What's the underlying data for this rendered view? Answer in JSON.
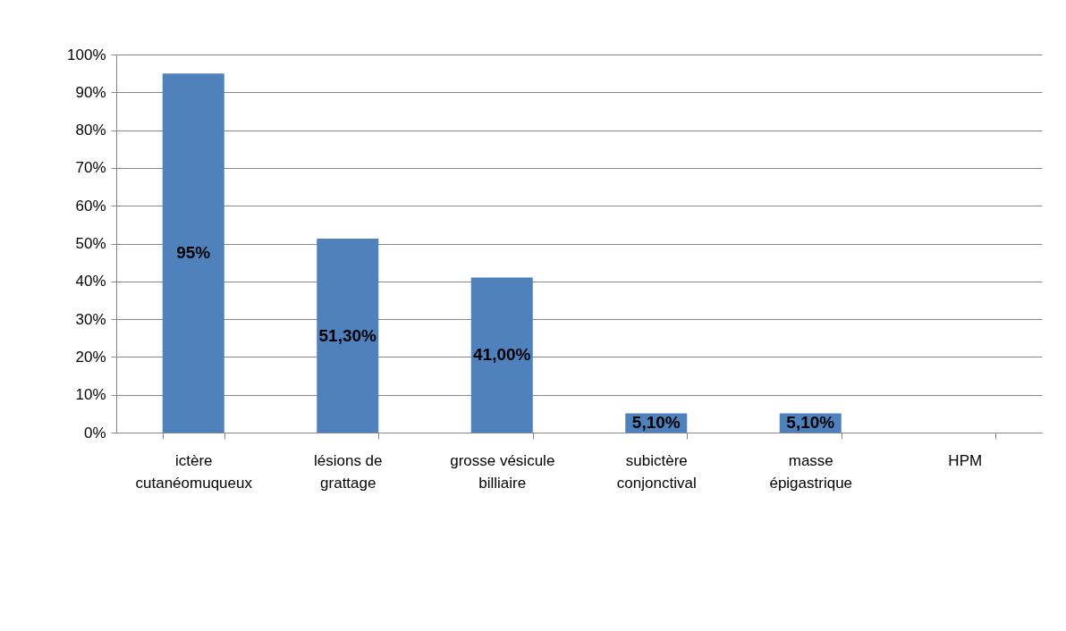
{
  "chart_data": {
    "type": "bar",
    "categories": [
      "ictère cutanéomuqueux",
      "lésions de grattage",
      "grosse vésicule billiaire",
      "subictère conjonctival",
      "masse épigastrique",
      "HPM"
    ],
    "values": [
      95,
      51.3,
      41,
      5.1,
      5.1,
      null
    ],
    "value_labels": [
      "95%",
      "51,30%",
      "41,00%",
      "5,10%",
      "5,10%",
      null
    ],
    "color": "#4f81bd",
    "ylim": [
      0,
      100
    ],
    "yticks": [
      {
        "value": 0,
        "label": "0%"
      },
      {
        "value": 10,
        "label": "10%"
      },
      {
        "value": 20,
        "label": "20%"
      },
      {
        "value": 30,
        "label": "30%"
      },
      {
        "value": 40,
        "label": "40%"
      },
      {
        "value": 50,
        "label": "50%"
      },
      {
        "value": 60,
        "label": "60%"
      },
      {
        "value": 70,
        "label": "70%"
      },
      {
        "value": 80,
        "label": "80%"
      },
      {
        "value": 90,
        "label": "90%"
      },
      {
        "value": 100,
        "label": "100%"
      }
    ],
    "grid": "y"
  }
}
